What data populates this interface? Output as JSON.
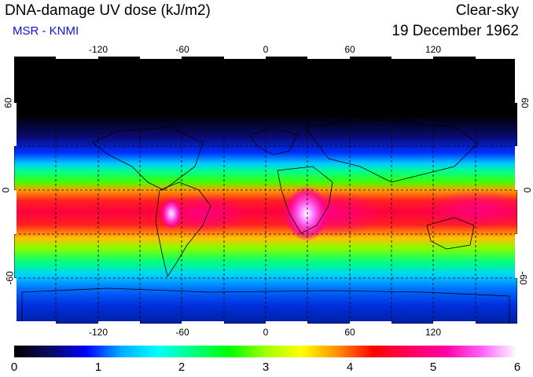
{
  "title": "DNA-damage UV dose (kJ/m2)",
  "subtitle": "MSR - KNMI",
  "subtitle_color": "#1010e0",
  "condition": "Clear-sky",
  "date": "19 December 1962",
  "longitude_ticks": [
    "-120",
    "-60",
    "0",
    "60",
    "120"
  ],
  "latitude_ticks": [
    "60",
    "0",
    "-60"
  ],
  "colorbar": {
    "labels": [
      "0",
      "1",
      "2",
      "3",
      "4",
      "5",
      "6"
    ],
    "min": 0,
    "max": 6,
    "colors": [
      "#000000",
      "#0a0a60",
      "#0000ff",
      "#00b0ff",
      "#00ffff",
      "#00ff80",
      "#00ff00",
      "#a0ff00",
      "#ffff00",
      "#ff9000",
      "#ff0000",
      "#ff0060",
      "#ff00a0",
      "#ff60ff",
      "#ffffff"
    ]
  },
  "map": {
    "extent": {
      "lon": [
        -180,
        180
      ],
      "lat": [
        -90,
        90
      ]
    },
    "gridlines": true
  }
}
